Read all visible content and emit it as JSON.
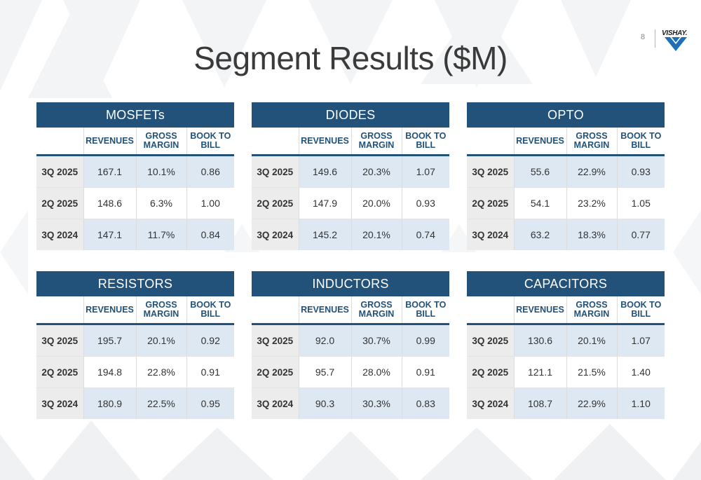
{
  "page": {
    "title": "Segment Results ($M)",
    "page_number": "8",
    "logo_text": "VISHAY."
  },
  "columns": [
    "REVENUES",
    "GROSS MARGIN",
    "BOOK TO BILL"
  ],
  "segments": [
    {
      "name": "MOSFETs",
      "rows": [
        {
          "period": "3Q 2025",
          "revenues": "167.1",
          "gross_margin": "10.1%",
          "book_to_bill": "0.86"
        },
        {
          "period": "2Q 2025",
          "revenues": "148.6",
          "gross_margin": "6.3%",
          "book_to_bill": "1.00"
        },
        {
          "period": "3Q 2024",
          "revenues": "147.1",
          "gross_margin": "11.7%",
          "book_to_bill": "0.84"
        }
      ]
    },
    {
      "name": "DIODES",
      "rows": [
        {
          "period": "3Q 2025",
          "revenues": "149.6",
          "gross_margin": "20.3%",
          "book_to_bill": "1.07"
        },
        {
          "period": "2Q 2025",
          "revenues": "147.9",
          "gross_margin": "20.0%",
          "book_to_bill": "0.93"
        },
        {
          "period": "3Q 2024",
          "revenues": "145.2",
          "gross_margin": "20.1%",
          "book_to_bill": "0.74"
        }
      ]
    },
    {
      "name": "OPTO",
      "rows": [
        {
          "period": "3Q 2025",
          "revenues": "55.6",
          "gross_margin": "22.9%",
          "book_to_bill": "0.93"
        },
        {
          "period": "2Q 2025",
          "revenues": "54.1",
          "gross_margin": "23.2%",
          "book_to_bill": "1.05"
        },
        {
          "period": "3Q 2024",
          "revenues": "63.2",
          "gross_margin": "18.3%",
          "book_to_bill": "0.77"
        }
      ]
    },
    {
      "name": "RESISTORS",
      "rows": [
        {
          "period": "3Q 2025",
          "revenues": "195.7",
          "gross_margin": "20.1%",
          "book_to_bill": "0.92"
        },
        {
          "period": "2Q 2025",
          "revenues": "194.8",
          "gross_margin": "22.8%",
          "book_to_bill": "0.91"
        },
        {
          "period": "3Q 2024",
          "revenues": "180.9",
          "gross_margin": "22.5%",
          "book_to_bill": "0.95"
        }
      ]
    },
    {
      "name": "INDUCTORS",
      "rows": [
        {
          "period": "3Q 2025",
          "revenues": "92.0",
          "gross_margin": "30.7%",
          "book_to_bill": "0.99"
        },
        {
          "period": "2Q 2025",
          "revenues": "95.7",
          "gross_margin": "28.0%",
          "book_to_bill": "0.91"
        },
        {
          "period": "3Q 2024",
          "revenues": "90.3",
          "gross_margin": "30.3%",
          "book_to_bill": "0.83"
        }
      ]
    },
    {
      "name": "CAPACITORS",
      "rows": [
        {
          "period": "3Q 2025",
          "revenues": "130.6",
          "gross_margin": "20.1%",
          "book_to_bill": "1.07"
        },
        {
          "period": "2Q 2025",
          "revenues": "121.1",
          "gross_margin": "21.5%",
          "book_to_bill": "1.40"
        },
        {
          "period": "3Q 2024",
          "revenues": "108.7",
          "gross_margin": "22.9%",
          "book_to_bill": "1.10"
        }
      ]
    }
  ],
  "colors": {
    "header_blue": "#22527a",
    "row_shade": "#dde8f3",
    "label_gray": "#ececec"
  }
}
